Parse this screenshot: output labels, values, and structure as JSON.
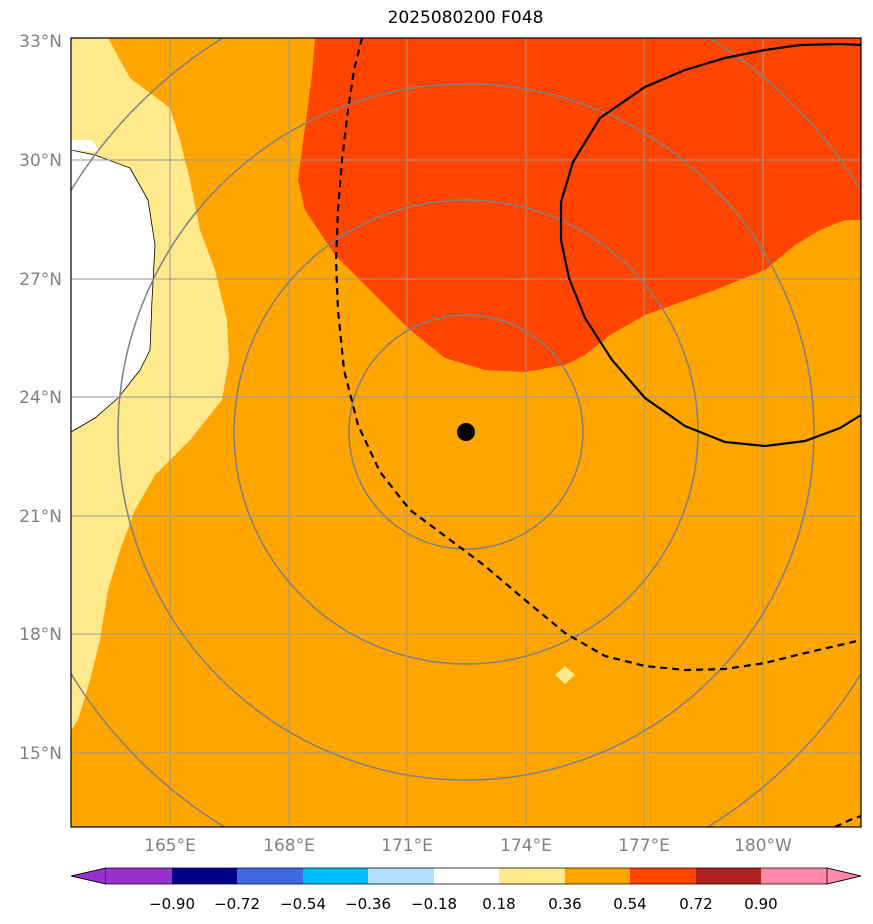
{
  "title": "2025080200 F048",
  "map": {
    "lon_range": [
      162.5,
      182.5
    ],
    "lat_range": [
      13,
      33
    ],
    "lat_ticks": [
      "33°N",
      "30°N",
      "27°N",
      "24°N",
      "21°N",
      "18°N",
      "15°N"
    ],
    "lon_ticks": [
      "165°E",
      "168°E",
      "171°E",
      "174°E",
      "177°E",
      "180°W"
    ],
    "center_marker": {
      "lon": 172.5,
      "lat": 23.1
    },
    "range_rings_deg": [
      3,
      6,
      9,
      12
    ],
    "fill_colors": {
      "light_yellow": "#ffe98a",
      "orange": "#ffa500",
      "red_orange": "#ff4500",
      "land": "#ffffff"
    }
  },
  "colorbar": {
    "labels": [
      "−0.90",
      "−0.72",
      "−0.54",
      "−0.36",
      "−0.18",
      "0.18",
      "0.36",
      "0.54",
      "0.72",
      "0.90"
    ],
    "colors": [
      "#9932cc",
      "#9932cc",
      "#00008b",
      "#4169e1",
      "#00bfff",
      "#b0e0ff",
      "#ffffff",
      "#ffe98a",
      "#ffa500",
      "#ff4500",
      "#b22222",
      "#ff88aa"
    ],
    "extend": "both"
  }
}
